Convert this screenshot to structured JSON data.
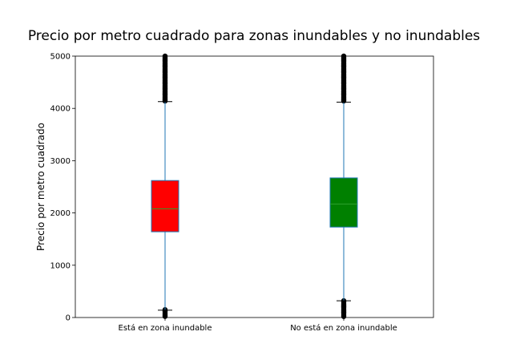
{
  "chart_data": {
    "type": "box",
    "title": "Precio por metro cuadrado para zonas inundables y no inundables",
    "xlabel": "",
    "ylabel": "Precio por metro cuadrado",
    "ylim": [
      0,
      5000
    ],
    "yticks": [
      "0",
      "1000",
      "2000",
      "3000",
      "4000",
      "5000"
    ],
    "categories": [
      "Está en zona inundable",
      "No está en zona inundable"
    ],
    "series": [
      {
        "category": "Está en zona inundable",
        "color": "#ff0000",
        "q1": 1640,
        "median": 2080,
        "q3": 2620,
        "whisker_low": 140,
        "whisker_high": 4130,
        "outliers_low_range": [
          0,
          150
        ],
        "outliers_high_range": [
          4130,
          5000
        ]
      },
      {
        "category": "No está en zona inundable",
        "color": "#008000",
        "q1": 1730,
        "median": 2170,
        "q3": 2670,
        "whisker_low": 320,
        "whisker_high": 4120,
        "outliers_low_range": [
          0,
          320
        ],
        "outliers_high_range": [
          4120,
          5000
        ]
      }
    ],
    "colors": {
      "whisker": "#1f77b4",
      "median": "#2ca02c",
      "box_edge": "#1f77b4",
      "outlier": "#000000"
    }
  }
}
